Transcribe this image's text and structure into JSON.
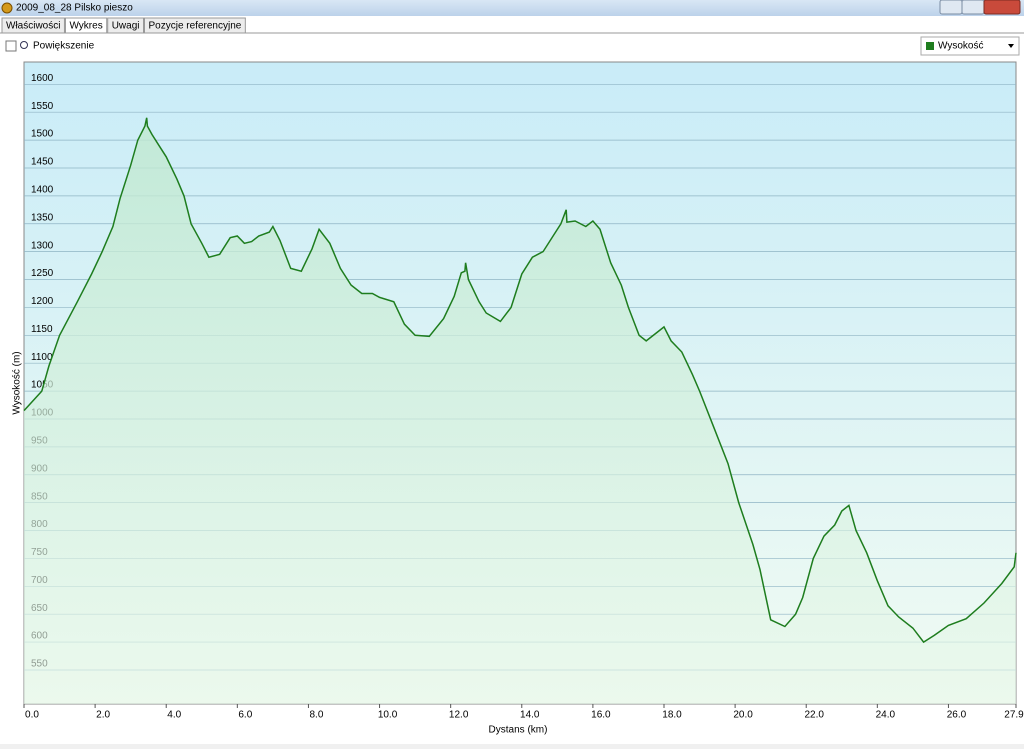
{
  "window": {
    "title": "2009_08_28 Pilsko pieszo"
  },
  "tabs": [
    "Właściwości",
    "Wykres",
    "Uwagi",
    "Pozycje referencyjne"
  ],
  "toolbar": {
    "zoom_label": "Powiększenie"
  },
  "chart_data": {
    "type": "line",
    "x_label": "Dystans (km)",
    "y_label": "Wysokość (m)",
    "x": [
      0,
      0.5,
      0.7,
      1.0,
      1.5,
      1.9,
      2.2,
      2.5,
      2.7,
      3.0,
      3.2,
      3.4,
      3.45,
      3.47,
      3.6,
      3.8,
      4.0,
      4.3,
      4.5,
      4.7,
      5.0,
      5.2,
      5.5,
      5.8,
      6.0,
      6.2,
      6.4,
      6.6,
      6.9,
      7.0,
      7.2,
      7.5,
      7.8,
      8.1,
      8.3,
      8.6,
      8.9,
      9.2,
      9.5,
      9.8,
      10.0,
      10.4,
      10.7,
      11.0,
      11.4,
      11.8,
      12.1,
      12.3,
      12.4,
      12.42,
      12.5,
      12.8,
      13.0,
      13.4,
      13.7,
      14.0,
      14.3,
      14.6,
      14.9,
      15.1,
      15.25,
      15.27,
      15.5,
      15.8,
      16.0,
      16.2,
      16.5,
      16.8,
      17.0,
      17.3,
      17.5,
      17.8,
      18.0,
      18.2,
      18.5,
      18.8,
      19.0,
      19.4,
      19.8,
      20.1,
      20.5,
      20.7,
      21.0,
      21.4,
      21.7,
      21.9,
      22.2,
      22.5,
      22.8,
      23.0,
      23.2,
      23.4,
      23.7,
      24.0,
      24.3,
      24.6,
      25.0,
      25.3,
      25.6,
      26.0,
      26.5,
      27.0,
      27.5,
      27.85,
      27.9
    ],
    "series": [
      {
        "name": "Wysokość",
        "color": "#1e7d1e",
        "values": [
          1015,
          1050,
          1095,
          1150,
          1210,
          1260,
          1300,
          1345,
          1395,
          1455,
          1500,
          1525,
          1540,
          1525,
          1510,
          1490,
          1470,
          1430,
          1400,
          1350,
          1315,
          1290,
          1295,
          1325,
          1328,
          1315,
          1318,
          1328,
          1335,
          1345,
          1320,
          1270,
          1265,
          1305,
          1340,
          1315,
          1270,
          1240,
          1225,
          1225,
          1218,
          1210,
          1170,
          1150,
          1148,
          1180,
          1220,
          1262,
          1265,
          1280,
          1250,
          1210,
          1190,
          1175,
          1200,
          1260,
          1290,
          1300,
          1330,
          1350,
          1375,
          1353,
          1355,
          1345,
          1355,
          1340,
          1280,
          1240,
          1200,
          1150,
          1140,
          1155,
          1165,
          1140,
          1120,
          1080,
          1050,
          985,
          920,
          850,
          775,
          730,
          640,
          628,
          650,
          680,
          750,
          790,
          810,
          835,
          845,
          800,
          760,
          710,
          665,
          645,
          625,
          600,
          612,
          630,
          642,
          670,
          705,
          735,
          760
        ]
      }
    ],
    "xlim": [
      0,
      27.9
    ],
    "ylim": [
      489,
      1640
    ],
    "xticks": [
      {
        "value": 0,
        "label": "0.0"
      },
      {
        "value": 2,
        "label": "2.0"
      },
      {
        "value": 4,
        "label": "4.0"
      },
      {
        "value": 6,
        "label": "6.0"
      },
      {
        "value": 8,
        "label": "8.0"
      },
      {
        "value": 10,
        "label": "10.0"
      },
      {
        "value": 12,
        "label": "12.0"
      },
      {
        "value": 14,
        "label": "14.0"
      },
      {
        "value": 16,
        "label": "16.0"
      },
      {
        "value": 18,
        "label": "18.0"
      },
      {
        "value": 20,
        "label": "20.0"
      },
      {
        "value": 22,
        "label": "22.0"
      },
      {
        "value": 24,
        "label": "24.0"
      },
      {
        "value": 26,
        "label": "26.0"
      },
      27.9
    ],
    "yticks": [
      550,
      600,
      650,
      700,
      750,
      800,
      850,
      900,
      950,
      1000,
      1050,
      1100,
      1150,
      1200,
      1250,
      1300,
      1350,
      1400,
      1450,
      1500,
      1550,
      1600
    ],
    "grid": true
  }
}
